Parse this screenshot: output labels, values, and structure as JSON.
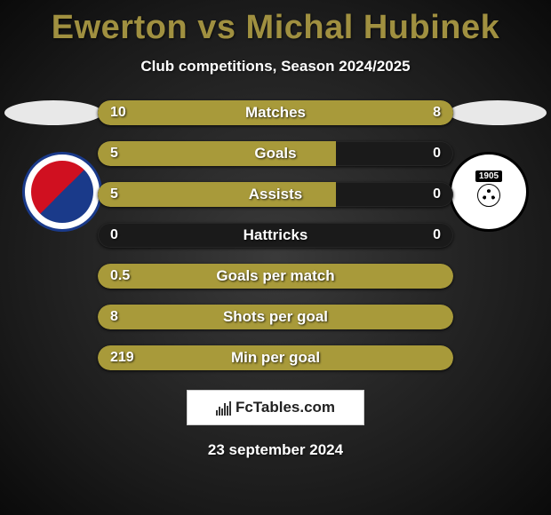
{
  "title": "Ewerton vs Michal Hubinek",
  "subtitle": "Club competitions, Season 2024/2025",
  "date": "23 september 2024",
  "colors": {
    "title_color": "#a09040",
    "text_color": "#ffffff",
    "bar_fill": "#a89a3a",
    "bar_track": "#1a1a1a",
    "background_center": "#3a3a3a",
    "background_edge": "#0a0a0a",
    "logo_bg": "#ffffff"
  },
  "typography": {
    "title_fontsize": 38,
    "subtitle_fontsize": 17,
    "bar_label_fontsize": 17,
    "bar_value_fontsize": 16
  },
  "crest_left": {
    "team": "Banik Ostrava",
    "colors": [
      "#d01020",
      "#1a3a8a",
      "#ffffff"
    ]
  },
  "crest_right": {
    "team": "SK Dynamo Ceske Budejovice",
    "year": "1905",
    "colors": [
      "#000000",
      "#ffffff"
    ]
  },
  "stats": [
    {
      "label": "Matches",
      "left_val": "10",
      "right_val": "8",
      "left_pct": 67,
      "right_pct": 33,
      "mode": "split"
    },
    {
      "label": "Goals",
      "left_val": "5",
      "right_val": "0",
      "left_pct": 67,
      "right_pct": 0,
      "mode": "left"
    },
    {
      "label": "Assists",
      "left_val": "5",
      "right_val": "0",
      "left_pct": 67,
      "right_pct": 0,
      "mode": "left"
    },
    {
      "label": "Hattricks",
      "left_val": "0",
      "right_val": "0",
      "left_pct": 0,
      "right_pct": 0,
      "mode": "none"
    },
    {
      "label": "Goals per match",
      "left_val": "0.5",
      "right_val": "",
      "left_pct": 100,
      "right_pct": 0,
      "mode": "full"
    },
    {
      "label": "Shots per goal",
      "left_val": "8",
      "right_val": "",
      "left_pct": 100,
      "right_pct": 0,
      "mode": "full"
    },
    {
      "label": "Min per goal",
      "left_val": "219",
      "right_val": "",
      "left_pct": 100,
      "right_pct": 0,
      "mode": "full"
    }
  ],
  "logo": {
    "text": "FcTables.com"
  }
}
